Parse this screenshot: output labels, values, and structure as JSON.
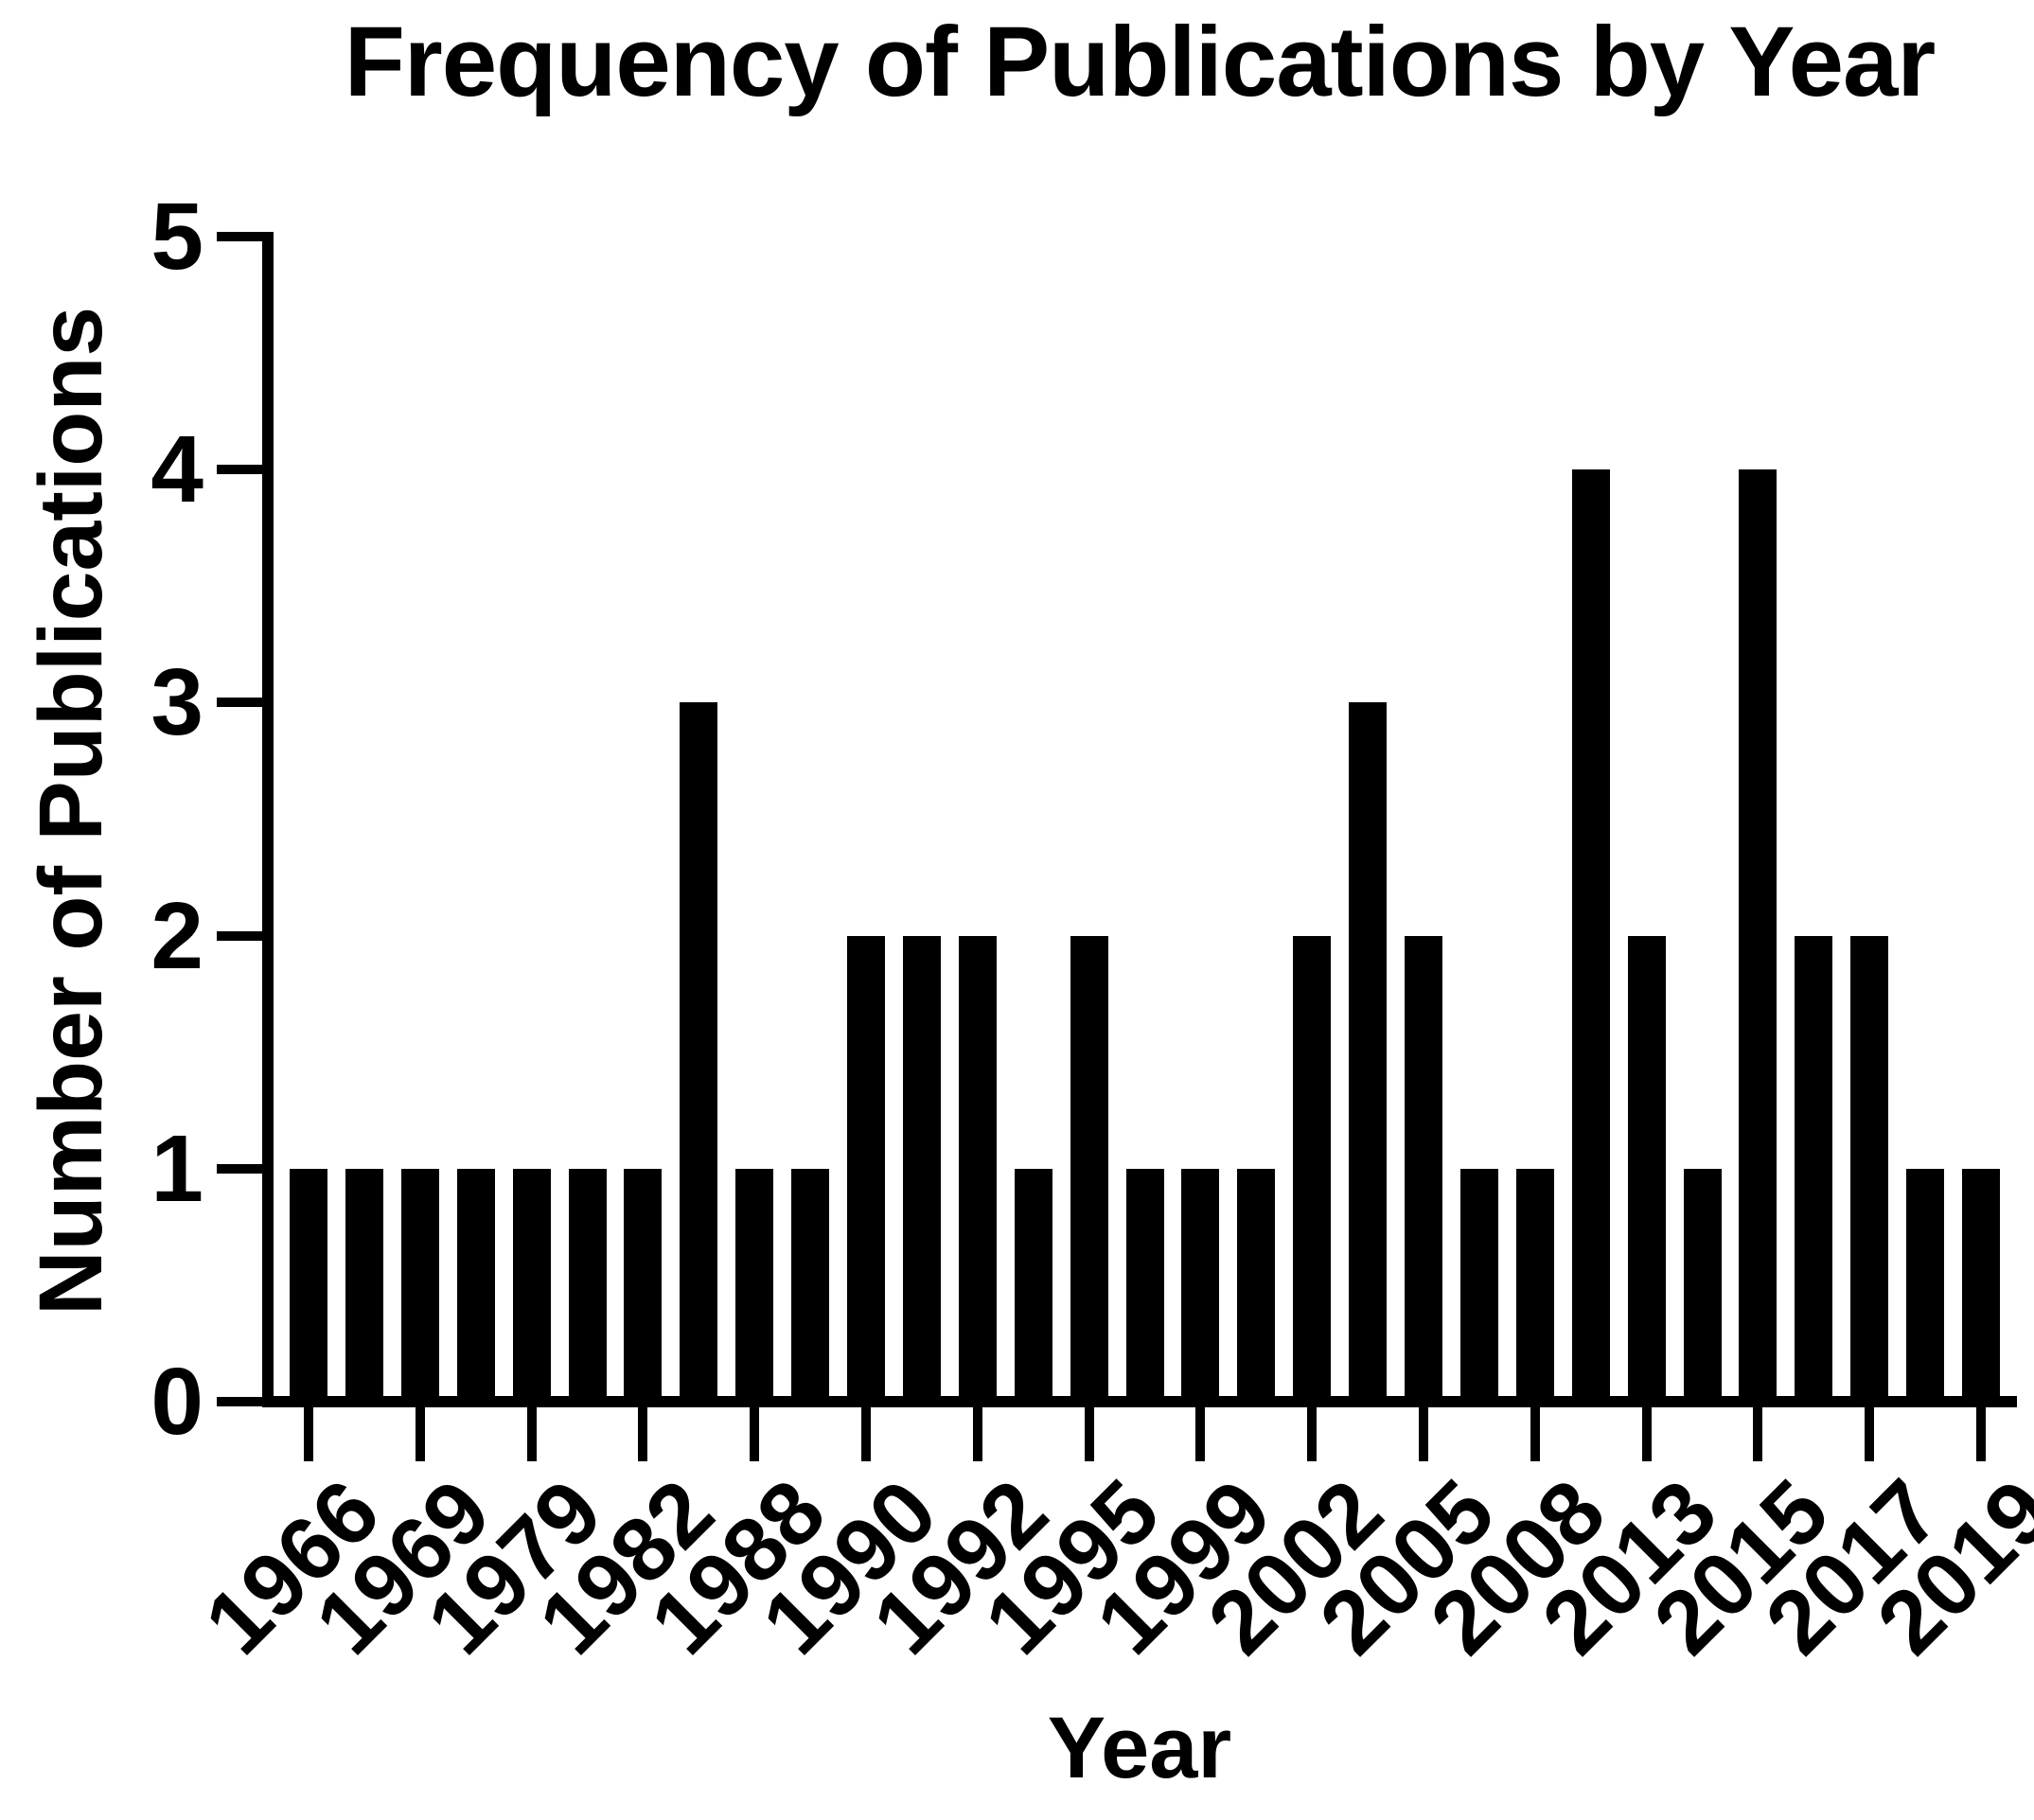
{
  "figure": {
    "title": "Frequency of Publications by Year",
    "x_axis_label": "Year",
    "y_axis_label": "Number of Publications"
  },
  "chart_data": {
    "type": "bar",
    "title": "Frequency of Publications by Year",
    "xlabel": "Year",
    "ylabel": "Number of Publications",
    "ylim": [
      0,
      5
    ],
    "y_ticks": [
      0,
      1,
      2,
      3,
      4,
      5
    ],
    "grid": false,
    "legend": false,
    "bar_color": "#000000",
    "background_color": "#ffffff",
    "x_tick_labels": [
      "1966",
      "1969",
      "1979",
      "1982",
      "1988",
      "1990",
      "1992",
      "1995",
      "1999",
      "2002",
      "2005",
      "2008",
      "2013",
      "2015",
      "2017",
      "2019"
    ],
    "label_every_n_bars": 2,
    "bars": [
      {
        "label": "1966",
        "value": 1
      },
      {
        "label": "",
        "value": 1
      },
      {
        "label": "1969",
        "value": 1
      },
      {
        "label": "",
        "value": 1
      },
      {
        "label": "1979",
        "value": 1
      },
      {
        "label": "",
        "value": 1
      },
      {
        "label": "1982",
        "value": 1
      },
      {
        "label": "",
        "value": 3
      },
      {
        "label": "1988",
        "value": 1
      },
      {
        "label": "",
        "value": 1
      },
      {
        "label": "1990",
        "value": 2
      },
      {
        "label": "",
        "value": 2
      },
      {
        "label": "1992",
        "value": 2
      },
      {
        "label": "",
        "value": 1
      },
      {
        "label": "1995",
        "value": 2
      },
      {
        "label": "",
        "value": 1
      },
      {
        "label": "1999",
        "value": 1
      },
      {
        "label": "",
        "value": 1
      },
      {
        "label": "2002",
        "value": 2
      },
      {
        "label": "",
        "value": 3
      },
      {
        "label": "2005",
        "value": 2
      },
      {
        "label": "",
        "value": 1
      },
      {
        "label": "2008",
        "value": 1
      },
      {
        "label": "",
        "value": 4
      },
      {
        "label": "2013",
        "value": 2
      },
      {
        "label": "",
        "value": 1
      },
      {
        "label": "2015",
        "value": 4
      },
      {
        "label": "",
        "value": 2
      },
      {
        "label": "2017",
        "value": 2
      },
      {
        "label": "",
        "value": 1
      },
      {
        "label": "2019",
        "value": 1
      }
    ]
  }
}
